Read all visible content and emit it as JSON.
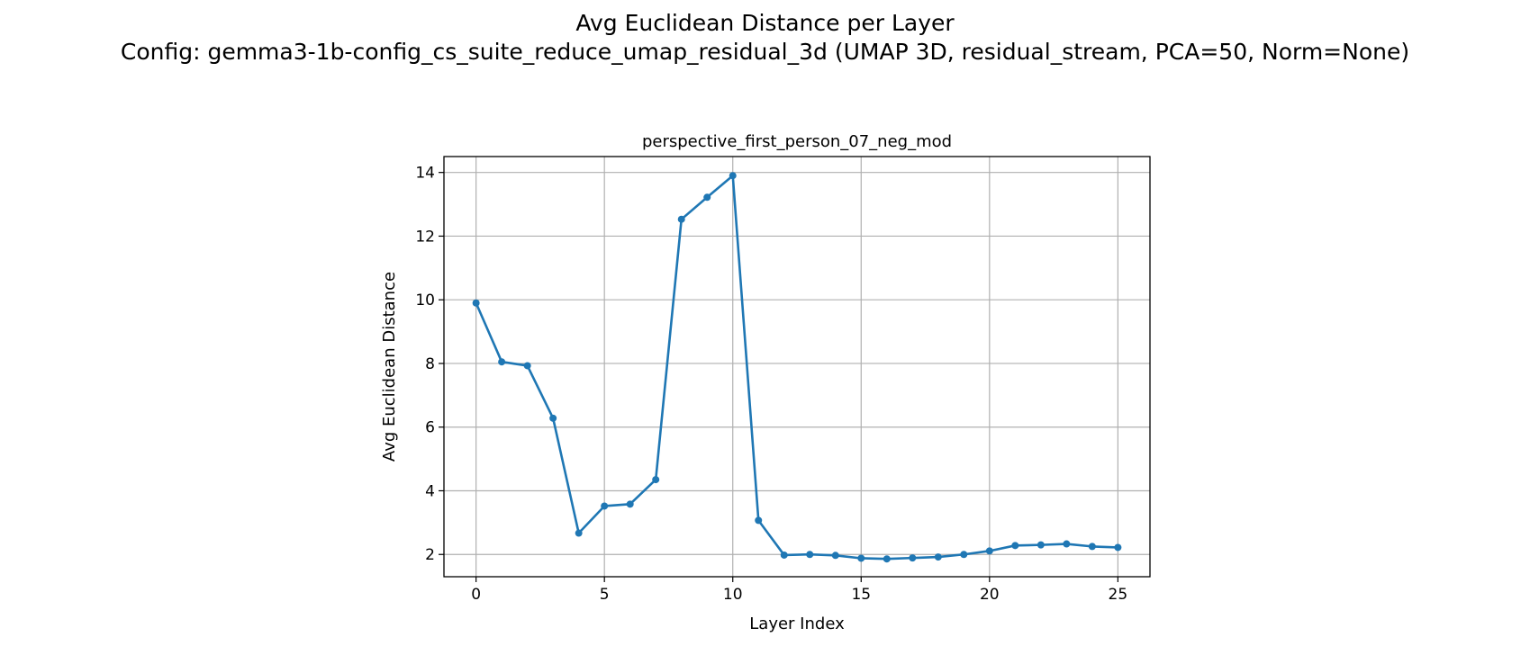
{
  "chart_data": {
    "type": "line",
    "suptitle": [
      "Avg Euclidean Distance per Layer",
      "Config: gemma3-1b-config_cs_suite_reduce_umap_residual_3d (UMAP 3D, residual_stream, PCA=50, Norm=None)"
    ],
    "title": "perspective_first_person_07_neg_mod",
    "xlabel": "Layer Index",
    "ylabel": "Avg Euclidean Distance",
    "xlim": [
      -1.25,
      26.25
    ],
    "ylim": [
      1.3,
      14.5
    ],
    "xticks": [
      0,
      5,
      10,
      15,
      20,
      25
    ],
    "yticks": [
      2,
      4,
      6,
      8,
      10,
      12,
      14
    ],
    "grid": true,
    "colors": {
      "line": "#1f77b4",
      "grid": "#b0b0b0",
      "axes": "#000000"
    },
    "series": [
      {
        "x": [
          0,
          1,
          2,
          3,
          4,
          5,
          6,
          7,
          8,
          9,
          10,
          11,
          12,
          13,
          14,
          15,
          16,
          17,
          18,
          19,
          20,
          21,
          22,
          23,
          24,
          25
        ],
        "values": [
          9.9,
          8.05,
          7.93,
          6.28,
          2.67,
          3.52,
          3.58,
          4.35,
          12.53,
          13.22,
          13.9,
          3.07,
          1.98,
          2.0,
          1.97,
          1.88,
          1.86,
          1.89,
          1.92,
          2.0,
          2.11,
          2.28,
          2.3,
          2.33,
          2.25,
          2.22
        ]
      }
    ]
  }
}
